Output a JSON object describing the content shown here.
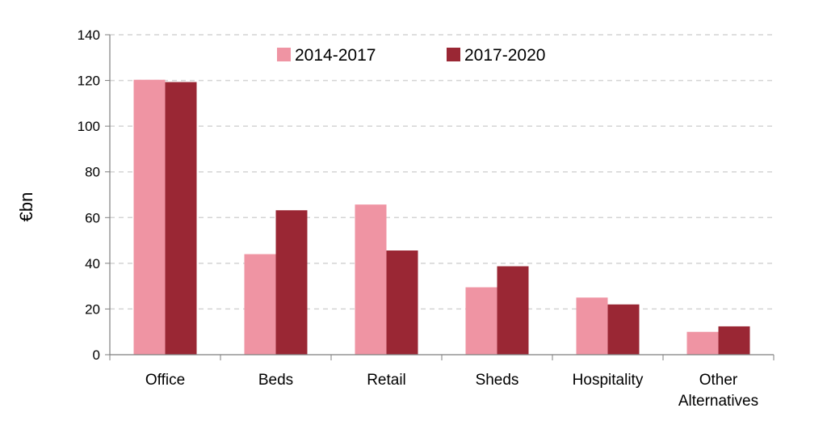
{
  "chart_data": {
    "type": "bar",
    "title": "",
    "xlabel": "",
    "ylabel": "€bn",
    "ylim": [
      0,
      140
    ],
    "yticks": [
      0,
      20,
      40,
      60,
      80,
      100,
      120,
      140
    ],
    "grid": true,
    "legend_position": "top-center",
    "categories": [
      [
        "Office"
      ],
      [
        "Beds"
      ],
      [
        "Retail"
      ],
      [
        "Sheds"
      ],
      [
        "Hospitality"
      ],
      [
        "Other",
        "Alternatives"
      ]
    ],
    "series": [
      {
        "name": "2014-2017",
        "color": "#ef94a3",
        "values": [
          120.3,
          44.0,
          65.7,
          29.5,
          25.0,
          10.0
        ]
      },
      {
        "name": "2017-2020",
        "color": "#9a2734",
        "values": [
          119.3,
          63.2,
          45.6,
          38.7,
          22.0,
          12.4
        ]
      }
    ]
  }
}
